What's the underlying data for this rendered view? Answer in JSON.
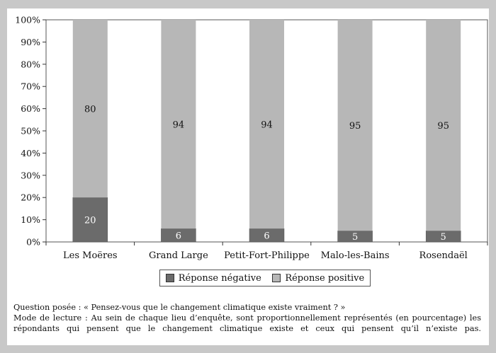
{
  "chart_data": {
    "type": "bar",
    "stacked": true,
    "categories": [
      "Les Moëres",
      "Grand Large",
      "Petit-Fort-Philippe",
      "Malo-les-Bains",
      "Rosendaël"
    ],
    "series": [
      {
        "name": "Réponse négative",
        "values": [
          20,
          6,
          6,
          5,
          5
        ],
        "color": "#6b6b6b"
      },
      {
        "name": "Réponse positive",
        "values": [
          80,
          94,
          94,
          95,
          95
        ],
        "color": "#b7b7b7"
      }
    ],
    "ylim": [
      0,
      100
    ],
    "yticks": [
      "0%",
      "10%",
      "20%",
      "30%",
      "40%",
      "50%",
      "60%",
      "70%",
      "80%",
      "90%",
      "100%"
    ],
    "legend_position": "bottom"
  },
  "notes": {
    "question": "Question posée : « Pensez-vous que le changement climatique existe vraiment ? »",
    "reading_mode": "Mode de lecture : Au sein de chaque lieu d’enquête, sont proportionnellement représentés (en pourcentage) les répondants qui pensent que le changement climatique existe et ceux qui pensent qu’il n’existe pas."
  }
}
